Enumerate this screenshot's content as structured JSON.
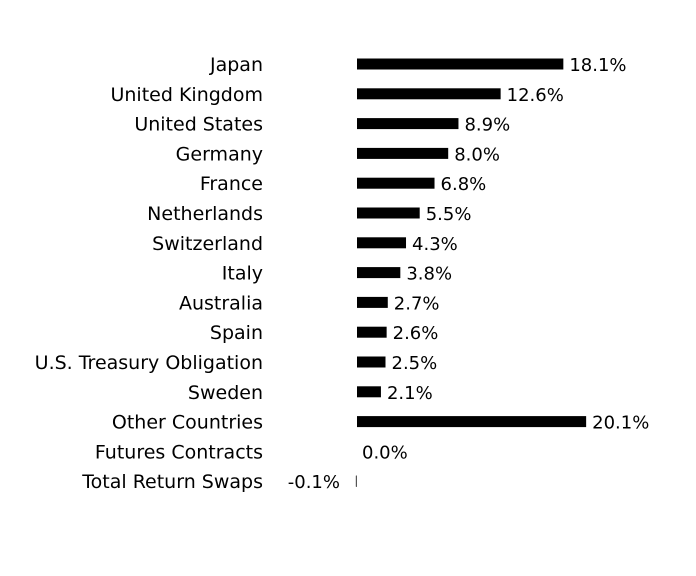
{
  "chart_data": {
    "type": "bar",
    "orientation": "horizontal",
    "categories": [
      "Japan",
      "United Kingdom",
      "United States",
      "Germany",
      "France",
      "Netherlands",
      "Switzerland",
      "Italy",
      "Australia",
      "Spain",
      "U.S. Treasury Obligation",
      "Sweden",
      "Other Countries",
      "Futures Contracts",
      "Total Return Swaps"
    ],
    "values": [
      18.1,
      12.6,
      8.9,
      8.0,
      6.8,
      5.5,
      4.3,
      3.8,
      2.7,
      2.6,
      2.5,
      2.1,
      20.1,
      0.0,
      -0.1
    ],
    "value_labels": [
      "18.1%",
      "12.6%",
      "8.9%",
      "8.0%",
      "6.8%",
      "5.5%",
      "4.3%",
      "3.8%",
      "2.7%",
      "2.6%",
      "2.5%",
      "2.1%",
      "20.1%",
      "0.0%",
      "-0.1%"
    ],
    "title": "",
    "xlabel": "",
    "ylabel": "",
    "grid": false,
    "legend": "none",
    "bar_color": "#000000"
  }
}
